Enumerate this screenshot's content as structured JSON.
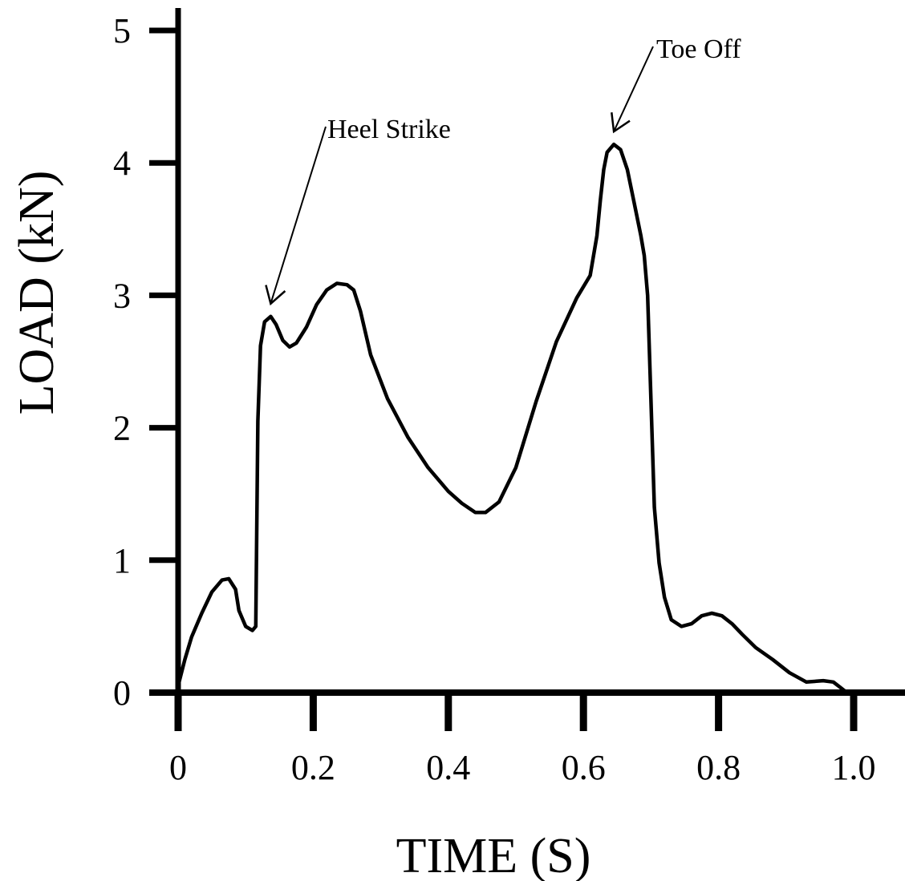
{
  "chart_data": {
    "type": "line",
    "xlabel": "TIME (S)",
    "ylabel": "LOAD (kN)",
    "xlim": [
      0,
      1.0
    ],
    "ylim": [
      0,
      5
    ],
    "x_ticks": [
      0,
      0.2,
      0.4,
      0.6,
      0.8,
      1.0
    ],
    "x_tick_labels": [
      "0",
      "0.2",
      "0.4",
      "0.6",
      "0.8",
      "1.0"
    ],
    "y_ticks": [
      0,
      1,
      2,
      3,
      4,
      5
    ],
    "y_tick_labels": [
      "0",
      "1",
      "2",
      "3",
      "4",
      "5"
    ],
    "grid": false,
    "series": [
      {
        "points": [
          [
            0.0,
            0.05
          ],
          [
            0.01,
            0.25
          ],
          [
            0.02,
            0.42
          ],
          [
            0.035,
            0.6
          ],
          [
            0.05,
            0.76
          ],
          [
            0.065,
            0.85
          ],
          [
            0.075,
            0.86
          ],
          [
            0.085,
            0.78
          ],
          [
            0.09,
            0.62
          ],
          [
            0.1,
            0.5
          ],
          [
            0.11,
            0.47
          ],
          [
            0.115,
            0.5
          ],
          [
            0.118,
            2.05
          ],
          [
            0.122,
            2.62
          ],
          [
            0.128,
            2.8
          ],
          [
            0.137,
            2.84
          ],
          [
            0.145,
            2.78
          ],
          [
            0.155,
            2.66
          ],
          [
            0.165,
            2.61
          ],
          [
            0.175,
            2.64
          ],
          [
            0.19,
            2.76
          ],
          [
            0.205,
            2.93
          ],
          [
            0.22,
            3.04
          ],
          [
            0.235,
            3.09
          ],
          [
            0.25,
            3.08
          ],
          [
            0.26,
            3.04
          ],
          [
            0.27,
            2.88
          ],
          [
            0.285,
            2.55
          ],
          [
            0.31,
            2.22
          ],
          [
            0.34,
            1.93
          ],
          [
            0.37,
            1.7
          ],
          [
            0.4,
            1.52
          ],
          [
            0.42,
            1.43
          ],
          [
            0.44,
            1.36
          ],
          [
            0.455,
            1.36
          ],
          [
            0.475,
            1.44
          ],
          [
            0.5,
            1.7
          ],
          [
            0.53,
            2.2
          ],
          [
            0.56,
            2.65
          ],
          [
            0.59,
            2.98
          ],
          [
            0.61,
            3.15
          ],
          [
            0.62,
            3.45
          ],
          [
            0.625,
            3.72
          ],
          [
            0.63,
            3.95
          ],
          [
            0.635,
            4.08
          ],
          [
            0.645,
            4.14
          ],
          [
            0.655,
            4.1
          ],
          [
            0.665,
            3.95
          ],
          [
            0.675,
            3.7
          ],
          [
            0.685,
            3.45
          ],
          [
            0.69,
            3.3
          ],
          [
            0.695,
            3.0
          ],
          [
            0.7,
            2.2
          ],
          [
            0.705,
            1.4
          ],
          [
            0.712,
            0.98
          ],
          [
            0.72,
            0.72
          ],
          [
            0.73,
            0.55
          ],
          [
            0.745,
            0.5
          ],
          [
            0.76,
            0.52
          ],
          [
            0.775,
            0.58
          ],
          [
            0.79,
            0.6
          ],
          [
            0.805,
            0.58
          ],
          [
            0.82,
            0.52
          ],
          [
            0.835,
            0.44
          ],
          [
            0.855,
            0.34
          ],
          [
            0.88,
            0.25
          ],
          [
            0.905,
            0.15
          ],
          [
            0.93,
            0.08
          ],
          [
            0.955,
            0.09
          ],
          [
            0.97,
            0.08
          ],
          [
            0.98,
            0.04
          ],
          [
            0.99,
            0.0
          ]
        ]
      }
    ],
    "annotations": [
      {
        "text": "Heel Strike",
        "x": 0.137,
        "y": 2.84
      },
      {
        "text": "Toe Off",
        "x": 0.645,
        "y": 4.14
      }
    ]
  }
}
